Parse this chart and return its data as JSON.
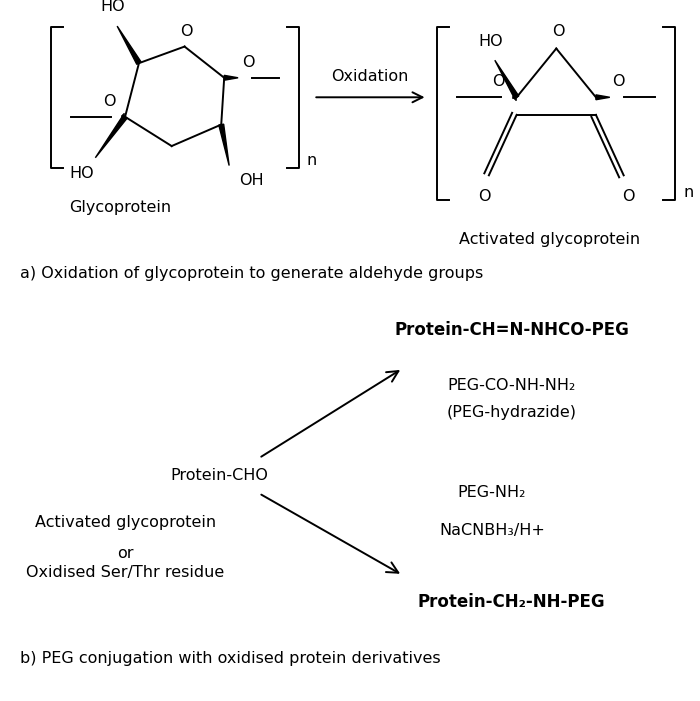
{
  "bg_color": "#ffffff",
  "text_color": "#000000",
  "section_a_label": "a) Oxidation of glycoprotein to generate aldehyde groups",
  "section_b_label": "b) PEG conjugation with oxidised protein derivatives",
  "oxidation_label": "Oxidation",
  "glycoprotein_label": "Glycoprotein",
  "activated_glycoprotein_label": "Activated glycoprotein",
  "protein_cho_label": "Protein-CHO",
  "activated_glycoprotein_or": "Activated glycoprotein",
  "or_label": "or",
  "oxidised_ser_thr": "Oxidised Ser/Thr residue",
  "product1_label": "Protein-CH=N-NHCO-PEG",
  "peg_hydrazide_line1": "PEG-CO-NH-NH₂",
  "peg_hydrazide_line2": "(PEG-hydrazide)",
  "peg_nh2": "PEG-NH₂",
  "nacnbh3": "NaCNBH₃/H+",
  "product2_label": "Protein-CH₂-NH-PEG"
}
